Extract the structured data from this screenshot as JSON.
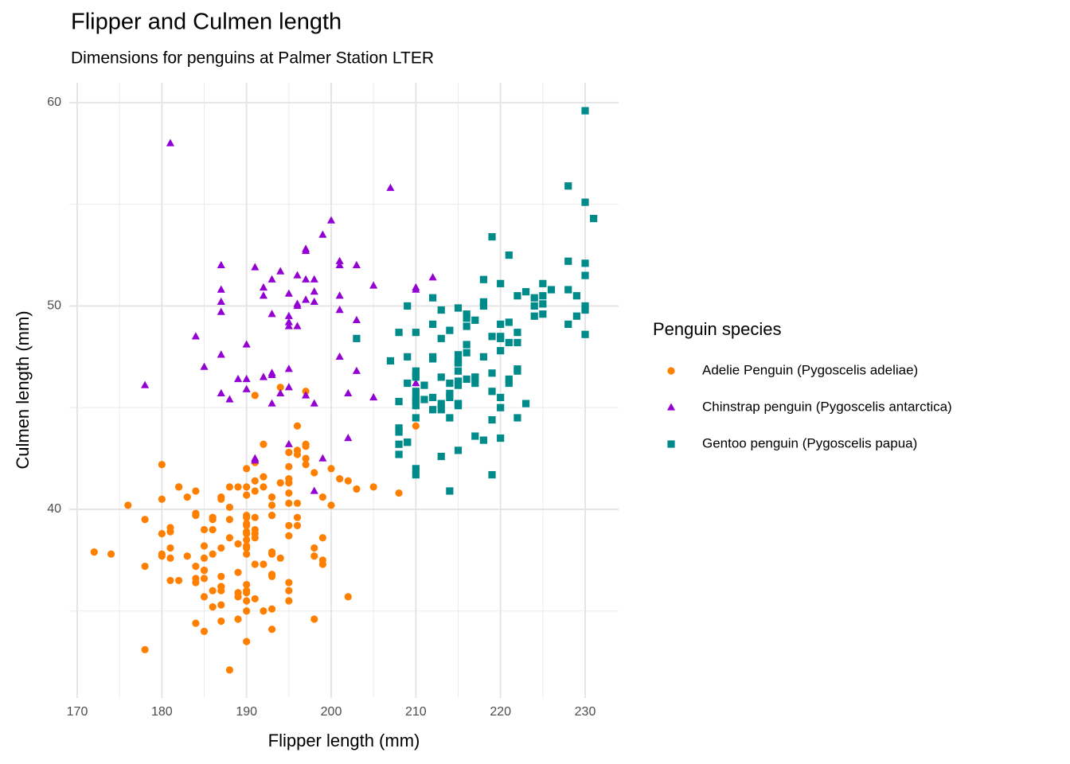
{
  "chart_data": {
    "type": "scatter",
    "title": "Flipper and Culmen length",
    "subtitle": "Dimensions for penguins at Palmer Station LTER",
    "x_label": "Flipper length (mm)",
    "y_label": "Culmen length (mm)",
    "legend_title": "Penguin species",
    "legend_position": "right",
    "grid": true,
    "xlim": [
      169.05,
      233.95
    ],
    "ylim": [
      30.725,
      60.975
    ],
    "xticks": [
      170,
      180,
      190,
      200,
      210,
      220,
      230
    ],
    "yticks": [
      40,
      50,
      60
    ],
    "xminor": [
      175,
      185,
      195,
      205,
      215,
      225
    ],
    "yminor": [
      35,
      45,
      55
    ],
    "series": [
      {
        "name": "Adelie Penguin (Pygoscelis adeliae)",
        "color": "#ff7f00",
        "shape": "circle",
        "x": [
          181,
          186,
          195,
          193,
          190,
          181,
          195,
          193,
          190,
          186,
          180,
          182,
          191,
          198,
          185,
          195,
          197,
          184,
          194,
          174,
          180,
          189,
          185,
          180,
          187,
          183,
          187,
          172,
          180,
          178,
          178,
          188,
          184,
          195,
          196,
          190,
          180,
          181,
          184,
          182,
          195,
          186,
          196,
          185,
          190,
          182,
          190,
          191,
          186,
          188,
          190,
          200,
          187,
          191,
          186,
          193,
          181,
          194,
          185,
          195,
          185,
          192,
          184,
          192,
          195,
          188,
          190,
          198,
          190,
          190,
          196,
          197,
          190,
          195,
          191,
          184,
          187,
          195,
          189,
          196,
          187,
          193,
          191,
          194,
          190,
          189,
          189,
          190,
          202,
          205,
          185,
          186,
          187,
          208,
          190,
          196,
          178,
          192,
          192,
          203,
          183,
          190,
          193,
          184,
          199,
          190,
          181,
          197,
          198,
          191,
          193,
          197,
          191,
          196,
          188,
          199,
          189,
          189,
          187,
          198,
          176,
          202,
          186,
          199,
          191,
          195,
          191,
          210,
          190,
          197,
          193,
          199,
          187,
          190,
          191,
          200,
          185,
          193,
          193,
          187,
          188,
          190,
          192,
          185,
          190,
          184,
          195,
          193,
          187,
          201
        ],
        "values": [
          39.1,
          39.5,
          40.3,
          36.7,
          39.3,
          38.9,
          39.2,
          34.1,
          42.0,
          37.8,
          37.8,
          41.1,
          38.6,
          34.6,
          36.6,
          38.7,
          42.5,
          34.4,
          46.0,
          37.8,
          37.7,
          35.9,
          38.2,
          38.8,
          35.3,
          40.6,
          40.5,
          37.9,
          40.5,
          39.5,
          37.2,
          39.5,
          40.9,
          36.4,
          39.2,
          38.8,
          42.2,
          37.6,
          39.8,
          36.5,
          40.8,
          36.0,
          44.1,
          37.0,
          39.6,
          41.1,
          36.0,
          42.3,
          39.6,
          40.1,
          35.0,
          42.0,
          34.5,
          41.4,
          39.0,
          40.6,
          36.5,
          37.6,
          35.7,
          41.3,
          37.6,
          41.1,
          36.4,
          41.6,
          35.5,
          41.1,
          35.9,
          41.8,
          33.5,
          39.7,
          39.6,
          45.8,
          35.5,
          42.8,
          40.9,
          37.2,
          36.2,
          42.1,
          34.6,
          42.9,
          36.7,
          35.1,
          37.3,
          41.3,
          36.3,
          36.9,
          38.3,
          38.9,
          35.7,
          41.1,
          34.0,
          39.6,
          36.2,
          40.8,
          38.1,
          40.3,
          33.1,
          43.2,
          35.0,
          41.0,
          37.7,
          37.8,
          37.9,
          39.7,
          38.6,
          38.2,
          38.1,
          43.2,
          38.1,
          45.6,
          39.7,
          42.2,
          39.6,
          42.7,
          38.6,
          37.3,
          35.7,
          41.1,
          36.2,
          37.7,
          40.2,
          41.4,
          35.2,
          40.6,
          38.8,
          41.5,
          39.0,
          44.1,
          38.5,
          43.1,
          36.8,
          37.5,
          38.1,
          41.1,
          35.6,
          40.2,
          37.0,
          39.7,
          40.2,
          40.6,
          32.1,
          40.7,
          37.3,
          39.0,
          39.2,
          36.6,
          36.0,
          37.8,
          36.0,
          41.5
        ]
      },
      {
        "name": "Chinstrap penguin (Pygoscelis antarctica)",
        "color": "#9400d3",
        "shape": "triangle",
        "x": [
          192,
          196,
          193,
          188,
          197,
          198,
          178,
          197,
          195,
          198,
          193,
          194,
          185,
          201,
          190,
          201,
          197,
          181,
          190,
          195,
          191,
          184,
          195,
          195,
          193,
          187,
          192,
          195,
          189,
          197,
          198,
          200,
          191,
          205,
          187,
          201,
          187,
          203,
          195,
          199,
          195,
          210,
          192,
          205,
          210,
          187,
          196,
          196,
          196,
          201,
          190,
          212,
          187,
          198,
          199,
          201,
          193,
          203,
          187,
          197,
          191,
          203,
          202,
          194,
          207,
          202,
          193,
          210,
          198
        ],
        "values": [
          46.5,
          50.0,
          51.3,
          45.4,
          52.7,
          45.2,
          46.1,
          51.3,
          46.0,
          51.3,
          46.6,
          51.7,
          47.0,
          52.0,
          45.9,
          50.5,
          50.3,
          58.0,
          46.4,
          49.2,
          42.4,
          48.5,
          43.2,
          50.6,
          46.7,
          52.0,
          50.5,
          49.5,
          46.4,
          52.8,
          40.9,
          54.2,
          42.5,
          51.0,
          49.7,
          47.5,
          47.6,
          52.0,
          46.9,
          53.5,
          49.0,
          46.2,
          50.9,
          45.5,
          50.9,
          50.8,
          50.1,
          49.0,
          51.5,
          49.8,
          48.1,
          51.4,
          45.7,
          50.7,
          42.5,
          52.2,
          45.2,
          49.3,
          50.2,
          45.6,
          51.9,
          46.8,
          45.7,
          45.7,
          55.8,
          43.5,
          49.6,
          50.8,
          50.2
        ]
      },
      {
        "name": "Gentoo penguin (Pygoscelis papua)",
        "color": "#008b8b",
        "shape": "square",
        "x": [
          211,
          230,
          210,
          218,
          215,
          210,
          211,
          219,
          209,
          215,
          214,
          216,
          214,
          213,
          210,
          217,
          210,
          221,
          209,
          222,
          218,
          215,
          213,
          215,
          215,
          215,
          210,
          220,
          222,
          209,
          207,
          230,
          220,
          220,
          213,
          219,
          208,
          208,
          208,
          225,
          210,
          216,
          222,
          217,
          210,
          225,
          213,
          215,
          210,
          220,
          210,
          225,
          217,
          220,
          208,
          220,
          208,
          224,
          208,
          221,
          214,
          231,
          219,
          230,
          214,
          229,
          220,
          223,
          216,
          221,
          221,
          217,
          216,
          230,
          209,
          220,
          215,
          223,
          212,
          221,
          212,
          224,
          212,
          228,
          218,
          218,
          212,
          230,
          218,
          228,
          212,
          224,
          214,
          226,
          216,
          222,
          203,
          225,
          219,
          228,
          215,
          228,
          215,
          210,
          219,
          219,
          209,
          216,
          229,
          213,
          230,
          217,
          230,
          222,
          214,
          215,
          222,
          212,
          213,
          215,
          210
        ],
        "values": [
          46.1,
          50.0,
          48.7,
          50.0,
          47.6,
          46.5,
          45.4,
          46.7,
          43.3,
          46.8,
          40.9,
          49.0,
          45.5,
          48.4,
          45.8,
          49.3,
          42.0,
          49.2,
          46.2,
          48.7,
          50.2,
          45.1,
          46.5,
          46.3,
          42.9,
          46.1,
          44.5,
          47.8,
          48.2,
          50.0,
          47.3,
          59.6,
          49.1,
          48.4,
          42.6,
          44.4,
          44.0,
          48.7,
          42.7,
          49.6,
          45.3,
          49.6,
          50.5,
          43.6,
          45.5,
          50.5,
          44.9,
          45.2,
          46.6,
          48.5,
          45.1,
          50.1,
          46.5,
          45.0,
          43.8,
          45.5,
          43.2,
          50.4,
          45.3,
          46.2,
          45.7,
          54.3,
          45.8,
          49.8,
          46.2,
          49.5,
          43.5,
          50.7,
          47.7,
          46.4,
          48.2,
          46.5,
          46.4,
          48.6,
          47.5,
          51.1,
          45.2,
          45.2,
          49.1,
          52.5,
          47.4,
          50.0,
          44.9,
          50.8,
          43.4,
          51.3,
          47.5,
          52.1,
          47.5,
          52.2,
          45.5,
          49.5,
          44.5,
          50.8,
          49.4,
          46.9,
          48.4,
          51.1,
          48.5,
          55.9,
          47.2,
          49.1,
          47.3,
          46.8,
          41.7,
          53.4,
          43.3,
          48.1,
          50.5,
          49.8,
          51.5,
          46.2,
          55.1,
          44.5,
          48.8,
          47.2,
          46.8,
          50.4,
          45.2,
          49.9,
          41.7
        ]
      }
    ]
  }
}
